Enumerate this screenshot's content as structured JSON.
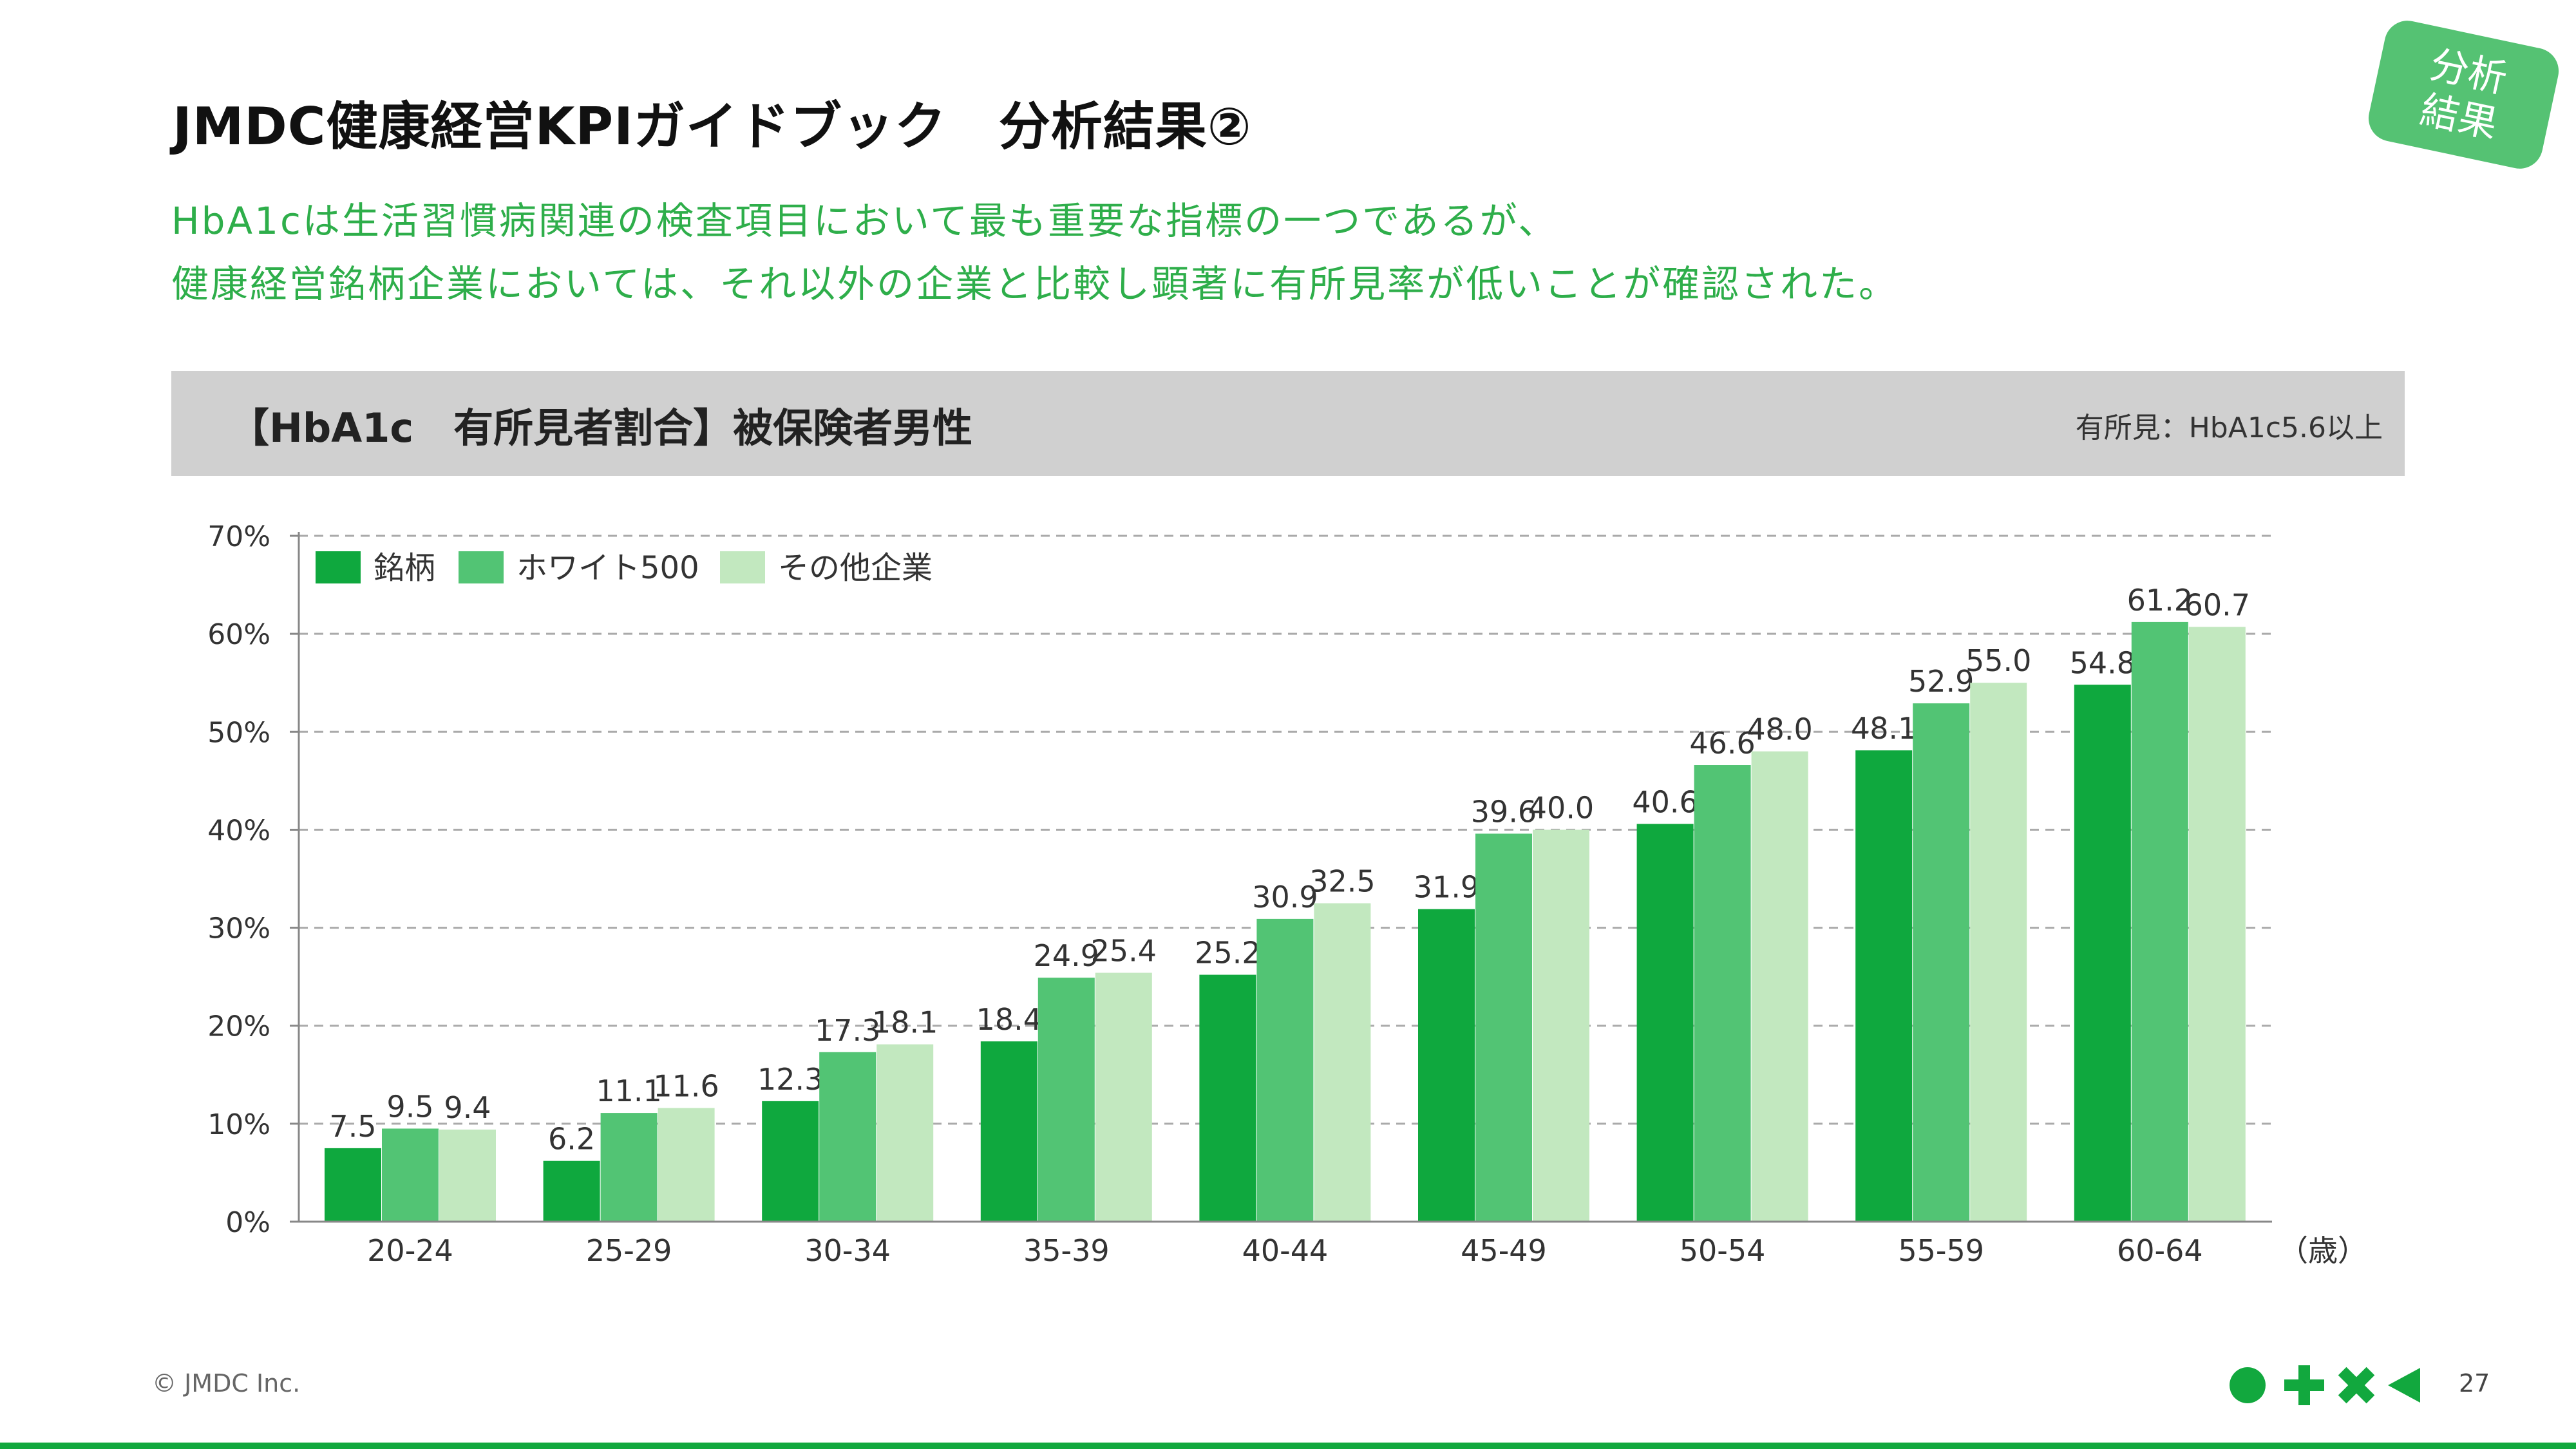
{
  "page": {
    "title": "JMDC健康経営KPIガイドブック　分析結果②",
    "badge": "分析結果",
    "subtitle_line1": "HbA1cは生活習慣病関連の検査項目において最も重要な指標の一つであるが、",
    "subtitle_line2": "健康経営銘柄企業においては、それ以外の企業と比較し顕著に有所見率が低いことが確認された。",
    "header_title": "【HbA1c　有所見者割合】被保険者男性",
    "header_note": "有所見：HbA1c5.6以上",
    "copyright": "© JMDC Inc.",
    "page_number": "27"
  },
  "colors": {
    "series1": "#0fa83e",
    "series2": "#52c474",
    "series3": "#c2e8bf",
    "accent": "#12a83e",
    "grid": "#aaaaaa"
  },
  "chart_data": {
    "type": "bar",
    "categories": [
      "20-24",
      "25-29",
      "30-34",
      "35-39",
      "40-44",
      "45-49",
      "50-54",
      "55-59",
      "60-64"
    ],
    "x_unit": "（歳）",
    "series": [
      {
        "name": "銘柄",
        "values": [
          7.5,
          6.2,
          12.3,
          18.4,
          25.2,
          31.9,
          40.6,
          48.1,
          54.8
        ]
      },
      {
        "name": "ホワイト500",
        "values": [
          9.5,
          11.1,
          17.3,
          24.9,
          30.9,
          39.6,
          46.6,
          52.9,
          61.2
        ]
      },
      {
        "name": "その他企業",
        "values": [
          9.4,
          11.6,
          18.1,
          25.4,
          32.5,
          40.0,
          48.0,
          55.0,
          60.7
        ]
      }
    ],
    "yticks": [
      "0%",
      "10%",
      "20%",
      "30%",
      "40%",
      "50%",
      "60%",
      "70%"
    ],
    "ylim": [
      0,
      70
    ],
    "grid": true,
    "legend": "top-left"
  }
}
